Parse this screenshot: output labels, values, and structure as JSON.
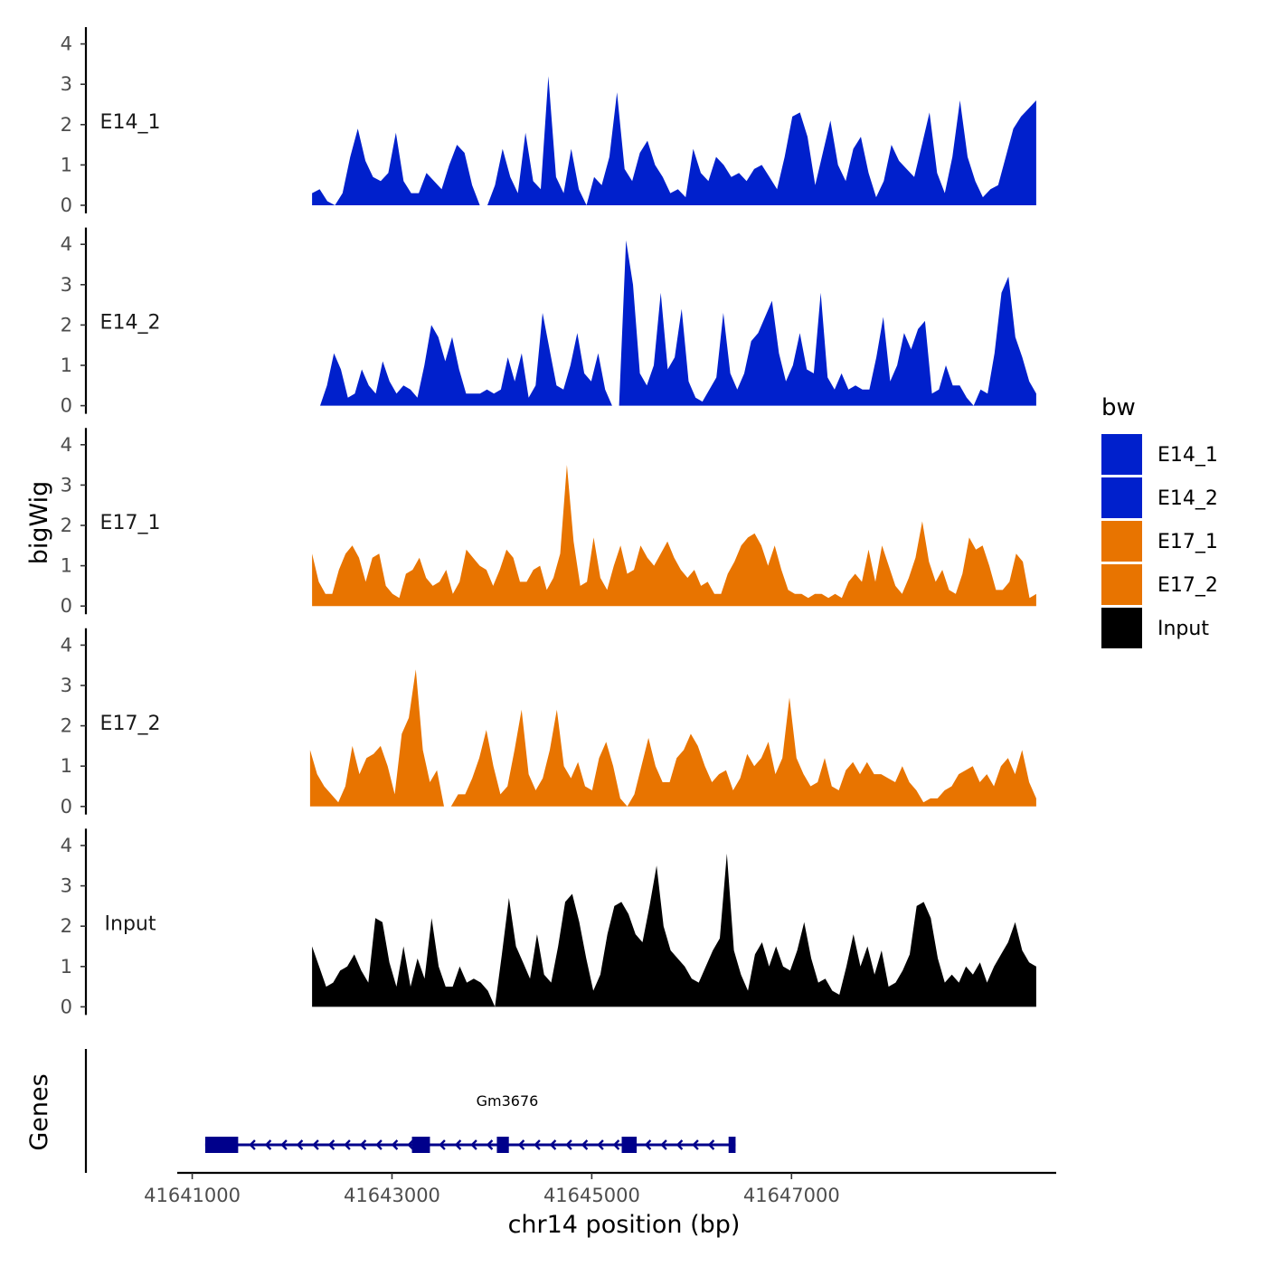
{
  "chart_data": {
    "type": "area",
    "ylabel": "bigWig",
    "xlabel": "chr14 position (bp)",
    "ylim": [
      0,
      4.3
    ],
    "y_ticks": [
      0,
      1,
      2,
      3,
      4
    ],
    "xlim": [
      41640850,
      41649650
    ],
    "x_ticks": [
      41641000,
      41643000,
      41645000,
      41647000
    ],
    "x_tick_labels": [
      "41641000",
      "41643000",
      "41645000",
      "41647000"
    ],
    "tracks": [
      {
        "name": "E14_1",
        "color": "#0020CC",
        "x_start": 41642200,
        "x_end": 41649450,
        "values": [
          0.3,
          0.4,
          0.1,
          0.0,
          0.3,
          1.2,
          1.9,
          1.1,
          0.7,
          0.6,
          0.8,
          1.8,
          0.6,
          0.3,
          0.3,
          0.8,
          0.6,
          0.4,
          1.0,
          1.5,
          1.3,
          0.5,
          0.0,
          0.0,
          0.5,
          1.4,
          0.7,
          0.3,
          1.8,
          0.6,
          0.4,
          3.2,
          0.7,
          0.3,
          1.4,
          0.4,
          0.0,
          0.7,
          0.5,
          1.2,
          2.8,
          0.9,
          0.6,
          1.3,
          1.6,
          1.0,
          0.7,
          0.3,
          0.4,
          0.2,
          1.4,
          0.8,
          0.6,
          1.2,
          1.0,
          0.7,
          0.8,
          0.6,
          0.9,
          1.0,
          0.7,
          0.4,
          1.2,
          2.2,
          2.3,
          1.7,
          0.5,
          1.3,
          2.1,
          1.0,
          0.6,
          1.4,
          1.7,
          0.8,
          0.2,
          0.6,
          1.5,
          1.1,
          0.9,
          0.7,
          1.5,
          2.3,
          0.8,
          0.3,
          1.2,
          2.6,
          1.2,
          0.6,
          0.2,
          0.4,
          0.5,
          1.2,
          1.9,
          2.2,
          2.4,
          2.6
        ]
      },
      {
        "name": "E14_2",
        "color": "#0020CC",
        "x_start": 41642280,
        "x_end": 41649450,
        "values": [
          0.0,
          0.5,
          1.3,
          0.9,
          0.2,
          0.3,
          0.9,
          0.5,
          0.3,
          1.1,
          0.6,
          0.3,
          0.5,
          0.4,
          0.2,
          1.0,
          2.0,
          1.7,
          1.1,
          1.7,
          0.9,
          0.3,
          0.3,
          0.3,
          0.4,
          0.3,
          0.4,
          1.2,
          0.6,
          1.3,
          0.2,
          0.5,
          2.3,
          1.4,
          0.5,
          0.4,
          1.0,
          1.8,
          0.8,
          0.6,
          1.3,
          0.4,
          0.0,
          0.0,
          4.1,
          3.0,
          0.8,
          0.5,
          1.0,
          2.8,
          0.9,
          1.2,
          2.4,
          0.6,
          0.2,
          0.1,
          0.4,
          0.7,
          2.3,
          0.8,
          0.4,
          0.8,
          1.6,
          1.8,
          2.2,
          2.6,
          1.3,
          0.6,
          1.0,
          1.8,
          0.9,
          0.8,
          2.8,
          0.7,
          0.4,
          0.8,
          0.4,
          0.5,
          0.4,
          0.4,
          1.2,
          2.2,
          0.6,
          1.0,
          1.8,
          1.4,
          1.9,
          2.1,
          0.3,
          0.4,
          1.0,
          0.5,
          0.5,
          0.2,
          0.0,
          0.4,
          0.3,
          1.3,
          2.8,
          3.2,
          1.7,
          1.2,
          0.6,
          0.3
        ]
      },
      {
        "name": "E17_1",
        "color": "#E87400",
        "x_start": 41642200,
        "x_end": 41649450,
        "values": [
          1.3,
          0.6,
          0.3,
          0.3,
          0.9,
          1.3,
          1.5,
          1.2,
          0.6,
          1.2,
          1.3,
          0.5,
          0.3,
          0.2,
          0.8,
          0.9,
          1.2,
          0.7,
          0.5,
          0.6,
          0.9,
          0.3,
          0.6,
          1.4,
          1.2,
          1.0,
          0.9,
          0.5,
          0.9,
          1.4,
          1.2,
          0.6,
          0.6,
          0.9,
          1.0,
          0.4,
          0.7,
          1.3,
          3.5,
          1.6,
          0.5,
          0.6,
          1.7,
          0.7,
          0.4,
          1.0,
          1.5,
          0.8,
          0.9,
          1.5,
          1.2,
          1.0,
          1.3,
          1.6,
          1.2,
          0.9,
          0.7,
          0.9,
          0.5,
          0.6,
          0.3,
          0.3,
          0.8,
          1.1,
          1.5,
          1.7,
          1.8,
          1.5,
          1.0,
          1.5,
          0.9,
          0.4,
          0.3,
          0.3,
          0.2,
          0.3,
          0.3,
          0.2,
          0.3,
          0.2,
          0.6,
          0.8,
          0.6,
          1.4,
          0.6,
          1.5,
          1.0,
          0.5,
          0.3,
          0.7,
          1.2,
          2.1,
          1.1,
          0.6,
          0.9,
          0.4,
          0.3,
          0.8,
          1.7,
          1.4,
          1.5,
          1.0,
          0.4,
          0.4,
          0.6,
          1.3,
          1.1,
          0.2,
          0.3
        ]
      },
      {
        "name": "E17_2",
        "color": "#E87400",
        "x_start": 41642180,
        "x_end": 41649450,
        "values": [
          1.4,
          0.8,
          0.5,
          0.3,
          0.1,
          0.5,
          1.5,
          0.8,
          1.2,
          1.3,
          1.5,
          1.0,
          0.3,
          1.8,
          2.2,
          3.4,
          1.4,
          0.6,
          0.9,
          0.0,
          0.0,
          0.3,
          0.3,
          0.7,
          1.2,
          1.9,
          1.0,
          0.3,
          0.5,
          1.4,
          2.4,
          0.8,
          0.4,
          0.7,
          1.4,
          2.4,
          1.0,
          0.7,
          1.1,
          0.5,
          0.4,
          1.2,
          1.6,
          1.0,
          0.2,
          0.0,
          0.3,
          1.0,
          1.7,
          1.0,
          0.6,
          0.6,
          1.2,
          1.4,
          1.8,
          1.5,
          1.0,
          0.6,
          0.8,
          0.9,
          0.4,
          0.7,
          1.3,
          1.0,
          1.2,
          1.6,
          0.8,
          1.2,
          2.7,
          1.2,
          0.8,
          0.5,
          0.6,
          1.2,
          0.5,
          0.4,
          0.9,
          1.1,
          0.8,
          1.1,
          0.8,
          0.8,
          0.7,
          0.6,
          1.0,
          0.6,
          0.4,
          0.1,
          0.2,
          0.2,
          0.4,
          0.5,
          0.8,
          0.9,
          1.0,
          0.6,
          0.8,
          0.5,
          1.0,
          1.2,
          0.8,
          1.4,
          0.6,
          0.2
        ]
      },
      {
        "name": "Input",
        "color": "#000000",
        "x_start": 41642200,
        "x_end": 41649450,
        "values": [
          1.5,
          1.0,
          0.5,
          0.6,
          0.9,
          1.0,
          1.3,
          0.9,
          0.6,
          2.2,
          2.1,
          1.1,
          0.5,
          1.5,
          0.5,
          1.2,
          0.7,
          2.2,
          1.0,
          0.5,
          0.5,
          1.0,
          0.6,
          0.7,
          0.6,
          0.4,
          0.0,
          1.3,
          2.7,
          1.5,
          1.1,
          0.7,
          1.8,
          0.8,
          0.6,
          1.5,
          2.6,
          2.8,
          2.1,
          1.2,
          0.4,
          0.8,
          1.8,
          2.5,
          2.6,
          2.3,
          1.8,
          1.6,
          2.5,
          3.5,
          2.0,
          1.4,
          1.2,
          1.0,
          0.7,
          0.6,
          1.0,
          1.4,
          1.7,
          3.8,
          1.4,
          0.8,
          0.4,
          1.3,
          1.6,
          1.0,
          1.5,
          1.0,
          0.9,
          1.4,
          2.1,
          1.2,
          0.6,
          0.7,
          0.4,
          0.3,
          1.0,
          1.8,
          1.0,
          1.5,
          0.8,
          1.4,
          0.5,
          0.6,
          0.9,
          1.3,
          2.5,
          2.6,
          2.2,
          1.2,
          0.6,
          0.8,
          0.6,
          1.0,
          0.8,
          1.1,
          0.6,
          1.0,
          1.3,
          1.6,
          2.1,
          1.4,
          1.1,
          1.0
        ]
      }
    ],
    "legend": {
      "title": "bw",
      "position": "right",
      "entries": [
        {
          "label": "E14_1",
          "color": "#0020CC"
        },
        {
          "label": "E14_2",
          "color": "#0020CC"
        },
        {
          "label": "E17_1",
          "color": "#E87400"
        },
        {
          "label": "E17_2",
          "color": "#E87400"
        },
        {
          "label": "Input",
          "color": "#000000"
        }
      ]
    },
    "genes_track": {
      "label": "Genes",
      "color": "#00008B",
      "gene": {
        "name": "Gm3676",
        "start": 41641130,
        "end": 41646440,
        "strand": "-",
        "exons": [
          [
            41641130,
            41641460
          ],
          [
            41643200,
            41643380
          ],
          [
            41644050,
            41644170
          ],
          [
            41645300,
            41645450
          ],
          [
            41646370,
            41646440
          ]
        ]
      }
    }
  }
}
